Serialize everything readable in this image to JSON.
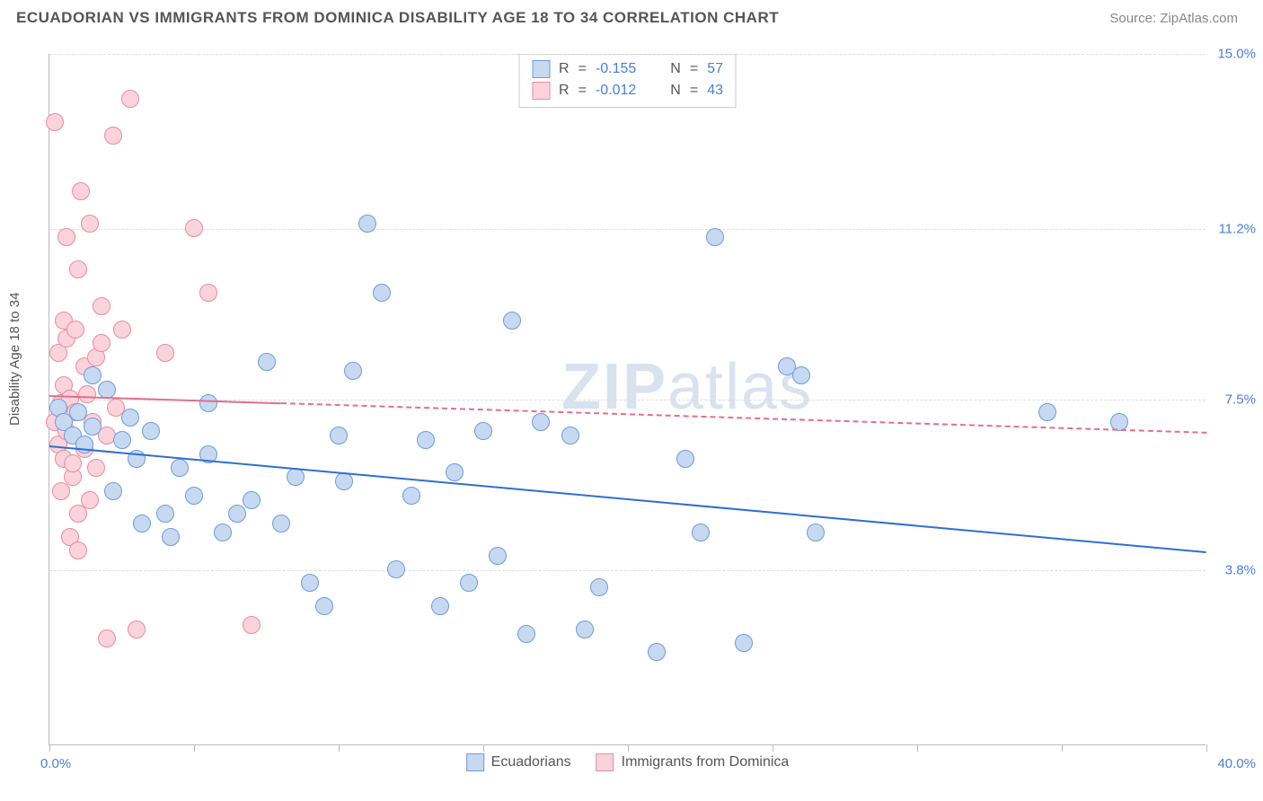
{
  "header": {
    "title": "ECUADORIAN VS IMMIGRANTS FROM DOMINICA DISABILITY AGE 18 TO 34 CORRELATION CHART",
    "source_prefix": "Source: ",
    "source_name": "ZipAtlas.com"
  },
  "chart": {
    "type": "scatter",
    "ylabel": "Disability Age 18 to 34",
    "xlim": [
      0,
      40
    ],
    "ylim": [
      0,
      15
    ],
    "xmin_label": "0.0%",
    "xmax_label": "40.0%",
    "yticks": [
      {
        "v": 3.8,
        "label": "3.8%"
      },
      {
        "v": 7.5,
        "label": "7.5%"
      },
      {
        "v": 11.2,
        "label": "11.2%"
      },
      {
        "v": 15.0,
        "label": "15.0%"
      }
    ],
    "xticks": [
      0,
      5,
      10,
      15,
      20,
      25,
      30,
      35,
      40
    ],
    "background_color": "#ffffff",
    "grid_color": "#dddddd",
    "border_color": "#bbbbbb",
    "marker_radius": 10,
    "label_fontsize": 15,
    "tick_color": "#4a7fd6",
    "watermark": {
      "text_bold": "ZIP",
      "text_light": "atlas",
      "color": "#d9e2ef",
      "fontsize": 72
    },
    "series": [
      {
        "id": "ecuadorians",
        "name": "Ecuadorians",
        "fill": "#c6d9f1",
        "stroke": "#6f9bd8",
        "trend": {
          "color": "#2f6fd0",
          "width": 2.5,
          "dash": "none",
          "y0": 6.5,
          "y1": 4.2,
          "x_extent": 40
        },
        "stats": {
          "R": "-0.155",
          "N": "57"
        },
        "points": [
          [
            0.3,
            7.3
          ],
          [
            0.5,
            7.0
          ],
          [
            0.8,
            6.7
          ],
          [
            1.0,
            7.2
          ],
          [
            1.2,
            6.5
          ],
          [
            1.5,
            8.0
          ],
          [
            1.5,
            6.9
          ],
          [
            2.0,
            7.7
          ],
          [
            2.2,
            5.5
          ],
          [
            2.5,
            6.6
          ],
          [
            2.8,
            7.1
          ],
          [
            3.0,
            6.2
          ],
          [
            3.2,
            4.8
          ],
          [
            3.5,
            6.8
          ],
          [
            4.0,
            5.0
          ],
          [
            4.2,
            4.5
          ],
          [
            4.5,
            6.0
          ],
          [
            5.0,
            5.4
          ],
          [
            5.5,
            6.3
          ],
          [
            5.5,
            7.4
          ],
          [
            6.0,
            4.6
          ],
          [
            6.5,
            5.0
          ],
          [
            7.0,
            5.3
          ],
          [
            7.5,
            8.3
          ],
          [
            8.0,
            4.8
          ],
          [
            8.5,
            5.8
          ],
          [
            9.0,
            3.5
          ],
          [
            9.5,
            3.0
          ],
          [
            10.0,
            6.7
          ],
          [
            10.2,
            5.7
          ],
          [
            10.5,
            8.1
          ],
          [
            11.0,
            11.3
          ],
          [
            11.5,
            9.8
          ],
          [
            12.0,
            3.8
          ],
          [
            12.5,
            5.4
          ],
          [
            13.0,
            6.6
          ],
          [
            13.5,
            3.0
          ],
          [
            14.0,
            5.9
          ],
          [
            14.5,
            3.5
          ],
          [
            15.0,
            6.8
          ],
          [
            15.5,
            4.1
          ],
          [
            16.0,
            9.2
          ],
          [
            16.5,
            2.4
          ],
          [
            17.0,
            7.0
          ],
          [
            18.0,
            6.7
          ],
          [
            18.5,
            2.5
          ],
          [
            19.0,
            3.4
          ],
          [
            21.0,
            2.0
          ],
          [
            22.0,
            6.2
          ],
          [
            22.5,
            4.6
          ],
          [
            23.0,
            11.0
          ],
          [
            24.0,
            2.2
          ],
          [
            25.5,
            8.2
          ],
          [
            26.0,
            8.0
          ],
          [
            26.5,
            4.6
          ],
          [
            34.5,
            7.2
          ],
          [
            37.0,
            7.0
          ]
        ]
      },
      {
        "id": "dominica",
        "name": "Immigrants from Dominica",
        "fill": "#fbd3db",
        "stroke": "#e98ba0",
        "trend": {
          "color": "#e36f8a",
          "width": 2,
          "dash": "6,6",
          "y0": 7.6,
          "y1": 6.8,
          "x_extent": 40,
          "solid_until": 8
        },
        "stats": {
          "R": "-0.012",
          "N": "43"
        },
        "points": [
          [
            0.2,
            7.0
          ],
          [
            0.3,
            8.5
          ],
          [
            0.3,
            6.5
          ],
          [
            0.4,
            7.4
          ],
          [
            0.4,
            5.5
          ],
          [
            0.5,
            7.8
          ],
          [
            0.5,
            6.2
          ],
          [
            0.5,
            9.2
          ],
          [
            0.6,
            8.8
          ],
          [
            0.6,
            6.8
          ],
          [
            0.7,
            4.5
          ],
          [
            0.7,
            7.5
          ],
          [
            0.8,
            5.8
          ],
          [
            0.8,
            6.1
          ],
          [
            0.9,
            9.0
          ],
          [
            0.9,
            7.2
          ],
          [
            1.0,
            10.3
          ],
          [
            1.0,
            5.0
          ],
          [
            1.1,
            12.0
          ],
          [
            1.2,
            8.2
          ],
          [
            1.2,
            6.4
          ],
          [
            1.3,
            7.6
          ],
          [
            1.4,
            5.3
          ],
          [
            1.4,
            11.3
          ],
          [
            1.6,
            6.0
          ],
          [
            1.6,
            8.4
          ],
          [
            1.8,
            9.5
          ],
          [
            1.8,
            8.7
          ],
          [
            2.0,
            2.3
          ],
          [
            2.0,
            6.7
          ],
          [
            2.2,
            13.2
          ],
          [
            2.3,
            7.3
          ],
          [
            2.5,
            9.0
          ],
          [
            2.8,
            14.0
          ],
          [
            3.0,
            2.5
          ],
          [
            4.0,
            8.5
          ],
          [
            5.0,
            11.2
          ],
          [
            5.5,
            9.8
          ],
          [
            7.0,
            2.6
          ],
          [
            0.2,
            13.5
          ],
          [
            0.6,
            11.0
          ],
          [
            1.5,
            7.0
          ],
          [
            1.0,
            4.2
          ]
        ]
      }
    ]
  },
  "legend_labels": {
    "R": "R",
    "N": "N",
    "eq": "="
  }
}
